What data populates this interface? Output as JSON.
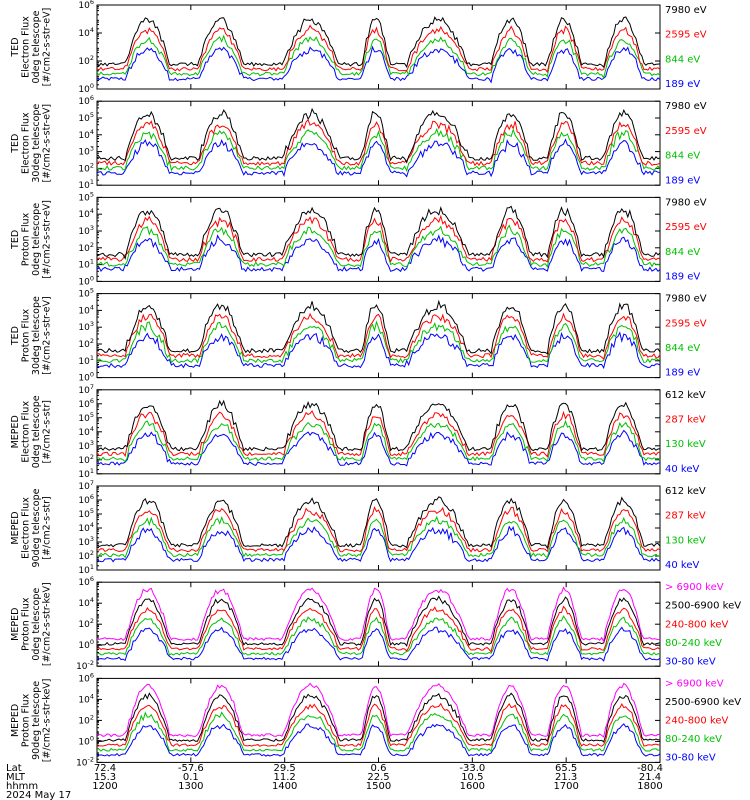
{
  "chart_data": [
    {
      "type": "line",
      "ylabel": [
        "TED",
        "Electron Flux",
        "0deg telescope",
        "[#/cm2-s-str-eV]"
      ],
      "ylim_exp": [
        0,
        6
      ],
      "ytick_exps": [
        0,
        2,
        4,
        6
      ],
      "series": [
        {
          "name": "7980 eV",
          "color": "#000000"
        },
        {
          "name": "2595 eV",
          "color": "#ff0000"
        },
        {
          "name": "844 eV",
          "color": "#00c000"
        },
        {
          "name": "189 eV",
          "color": "#0000ff"
        }
      ]
    },
    {
      "type": "line",
      "ylabel": [
        "TED",
        "Electron Flux",
        "30deg telescope",
        "[#/cm2-s-str-eV]"
      ],
      "ylim_exp": [
        1,
        6
      ],
      "ytick_exps": [
        1,
        2,
        3,
        4,
        5,
        6
      ],
      "series": [
        {
          "name": "7980 eV",
          "color": "#000000"
        },
        {
          "name": "2595 eV",
          "color": "#ff0000"
        },
        {
          "name": "844 eV",
          "color": "#00c000"
        },
        {
          "name": "189 eV",
          "color": "#0000ff"
        }
      ]
    },
    {
      "type": "line",
      "ylabel": [
        "TED",
        "Proton Flux",
        "0deg telescope",
        "[#/cm2-s-str-eV]"
      ],
      "ylim_exp": [
        0,
        5
      ],
      "ytick_exps": [
        0,
        1,
        2,
        3,
        4,
        5
      ],
      "series": [
        {
          "name": "7980 eV",
          "color": "#000000"
        },
        {
          "name": "2595 eV",
          "color": "#ff0000"
        },
        {
          "name": "844 eV",
          "color": "#00c000"
        },
        {
          "name": "189 eV",
          "color": "#0000ff"
        }
      ]
    },
    {
      "type": "line",
      "ylabel": [
        "TED",
        "Proton Flux",
        "30deg telescope",
        "[#/cm2-s-str-eV]"
      ],
      "ylim_exp": [
        0,
        5
      ],
      "ytick_exps": [
        0,
        1,
        2,
        3,
        4,
        5
      ],
      "series": [
        {
          "name": "7980 eV",
          "color": "#000000"
        },
        {
          "name": "2595 eV",
          "color": "#ff0000"
        },
        {
          "name": "844 eV",
          "color": "#00c000"
        },
        {
          "name": "189 eV",
          "color": "#0000ff"
        }
      ]
    },
    {
      "type": "line",
      "ylabel": [
        "MEPED",
        "Electron Flux",
        "0deg telescope",
        "[#/cm2-s-str]"
      ],
      "ylim_exp": [
        1,
        7
      ],
      "ytick_exps": [
        1,
        2,
        3,
        4,
        5,
        6,
        7
      ],
      "series": [
        {
          "name": "612 keV",
          "color": "#000000"
        },
        {
          "name": "287 keV",
          "color": "#ff0000"
        },
        {
          "name": "130 keV",
          "color": "#00c000"
        },
        {
          "name": "40 keV",
          "color": "#0000ff"
        }
      ]
    },
    {
      "type": "line",
      "ylabel": [
        "MEPED",
        "Electron Flux",
        "90deg telescope",
        "[#/cm2-s-str]"
      ],
      "ylim_exp": [
        1,
        7
      ],
      "ytick_exps": [
        1,
        2,
        3,
        4,
        5,
        6,
        7
      ],
      "series": [
        {
          "name": "612 keV",
          "color": "#000000"
        },
        {
          "name": "287 keV",
          "color": "#ff0000"
        },
        {
          "name": "130 keV",
          "color": "#00c000"
        },
        {
          "name": "40 keV",
          "color": "#0000ff"
        }
      ]
    },
    {
      "type": "line",
      "ylabel": [
        "MEPED",
        "Proton Flux",
        "0deg telescope",
        "[#/cm2-s-str-keV]"
      ],
      "ylim_exp": [
        -2,
        6
      ],
      "ytick_exps": [
        -2,
        0,
        2,
        4,
        6
      ],
      "series": [
        {
          "name": "> 6900 keV",
          "color": "#ff00ff"
        },
        {
          "name": "2500-6900 keV",
          "color": "#000000"
        },
        {
          "name": "240-800 keV",
          "color": "#ff0000"
        },
        {
          "name": "80-240 keV",
          "color": "#00c000"
        },
        {
          "name": "30-80 keV",
          "color": "#0000ff"
        }
      ]
    },
    {
      "type": "line",
      "ylabel": [
        "MEPED",
        "Proton Flux",
        "90deg telescope",
        "[#/cm2-s-str-keV]"
      ],
      "ylim_exp": [
        -2,
        6
      ],
      "ytick_exps": [
        -2,
        0,
        2,
        4,
        6
      ],
      "series": [
        {
          "name": "> 6900 keV",
          "color": "#ff00ff"
        },
        {
          "name": "2500-6900 keV",
          "color": "#000000"
        },
        {
          "name": "240-800 keV",
          "color": "#ff0000"
        },
        {
          "name": "80-240 keV",
          "color": "#00c000"
        },
        {
          "name": "30-80 keV",
          "color": "#0000ff"
        }
      ]
    }
  ],
  "orbit_labels": {
    "row_names": [
      "Lat",
      "MLT",
      "hhmm",
      "2024 May 17"
    ],
    "lat": [
      "72.4",
      "-57.6",
      "29.5",
      "0.6",
      "-33.0",
      "65.5",
      "-80.4"
    ],
    "mlt": [
      "15.3",
      "0.1",
      "11.2",
      "22.5",
      "10.5",
      "21.3",
      "21.4"
    ],
    "hhmm": [
      "1200",
      "1300",
      "1400",
      "1500",
      "1600",
      "1700",
      "1800"
    ]
  }
}
